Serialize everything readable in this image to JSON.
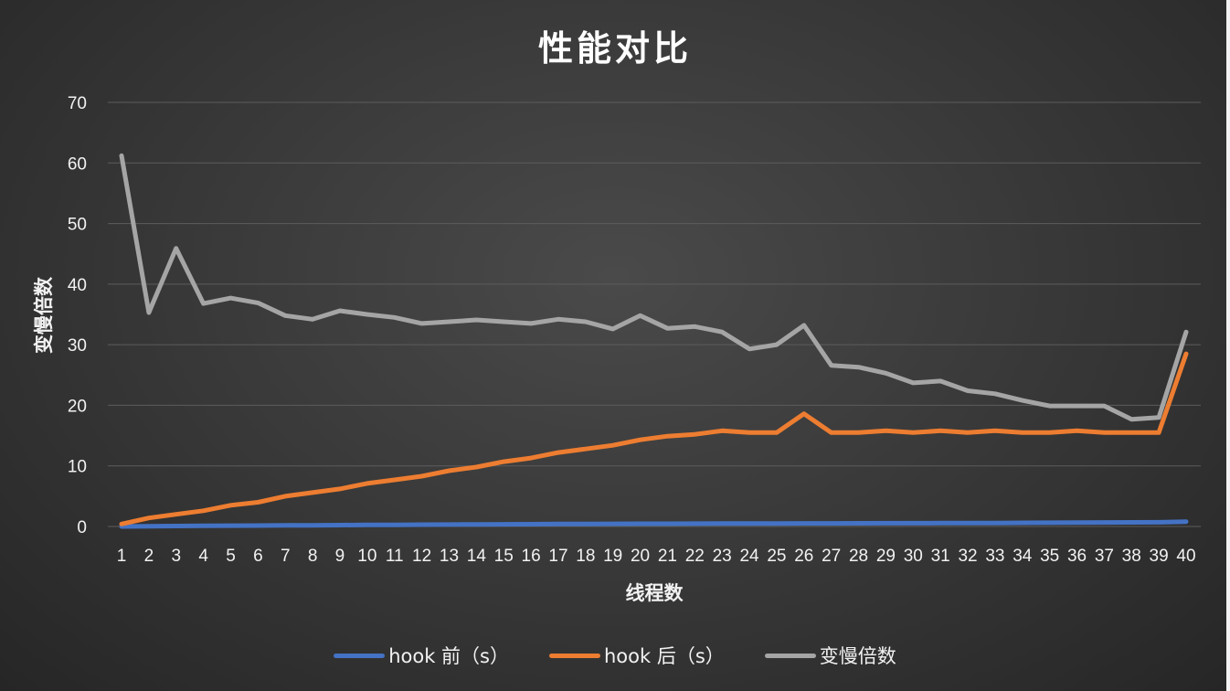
{
  "chart_data": {
    "type": "line",
    "title": "性能对比",
    "xlabel": "线程数",
    "ylabel": "变慢倍数",
    "ylim": [
      0,
      70
    ],
    "yticks": [
      0,
      10,
      20,
      30,
      40,
      50,
      60,
      70
    ],
    "grid": true,
    "legend_position": "bottom",
    "categories": [
      "1",
      "2",
      "3",
      "4",
      "5",
      "6",
      "7",
      "8",
      "9",
      "10",
      "11",
      "12",
      "13",
      "14",
      "15",
      "16",
      "17",
      "18",
      "19",
      "20",
      "21",
      "22",
      "23",
      "24",
      "25",
      "26",
      "27",
      "28",
      "29",
      "30",
      "31",
      "32",
      "33",
      "34",
      "35",
      "36",
      "37",
      "38",
      "39",
      "40"
    ],
    "series": [
      {
        "name": "hook 前（s）",
        "color": "#4472c4",
        "values": [
          0.0,
          0.05,
          0.07,
          0.1,
          0.13,
          0.15,
          0.18,
          0.2,
          0.22,
          0.25,
          0.27,
          0.3,
          0.32,
          0.34,
          0.36,
          0.38,
          0.4,
          0.42,
          0.44,
          0.45,
          0.46,
          0.47,
          0.48,
          0.5,
          0.5,
          0.51,
          0.52,
          0.53,
          0.54,
          0.55,
          0.56,
          0.57,
          0.58,
          0.6,
          0.62,
          0.64,
          0.66,
          0.68,
          0.7,
          0.8
        ]
      },
      {
        "name": "hook 后（s）",
        "color": "#ed7d31",
        "values": [
          0.4,
          1.4,
          2.0,
          2.6,
          3.5,
          4.0,
          5.0,
          5.6,
          6.2,
          7.1,
          7.7,
          8.3,
          9.2,
          9.8,
          10.7,
          11.3,
          12.2,
          12.8,
          13.4,
          14.3,
          14.9,
          15.2,
          15.8,
          15.5,
          15.5,
          18.6,
          15.5,
          15.5,
          15.8,
          15.5,
          15.8,
          15.5,
          15.8,
          15.5,
          15.5,
          15.8,
          15.5,
          15.5,
          15.5,
          28.5
        ]
      },
      {
        "name": "变慢倍数",
        "color": "#a5a5a5",
        "values": [
          61.2,
          35.3,
          45.9,
          36.8,
          37.7,
          36.9,
          34.8,
          34.2,
          35.6,
          35.0,
          34.5,
          33.5,
          33.8,
          34.1,
          33.8,
          33.5,
          34.2,
          33.8,
          32.6,
          34.8,
          32.7,
          33.0,
          32.1,
          29.3,
          30.0,
          33.2,
          26.6,
          26.3,
          25.3,
          23.7,
          24.0,
          22.4,
          21.9,
          20.8,
          19.9,
          19.9,
          19.9,
          17.7,
          18.0,
          32.1
        ]
      }
    ]
  }
}
